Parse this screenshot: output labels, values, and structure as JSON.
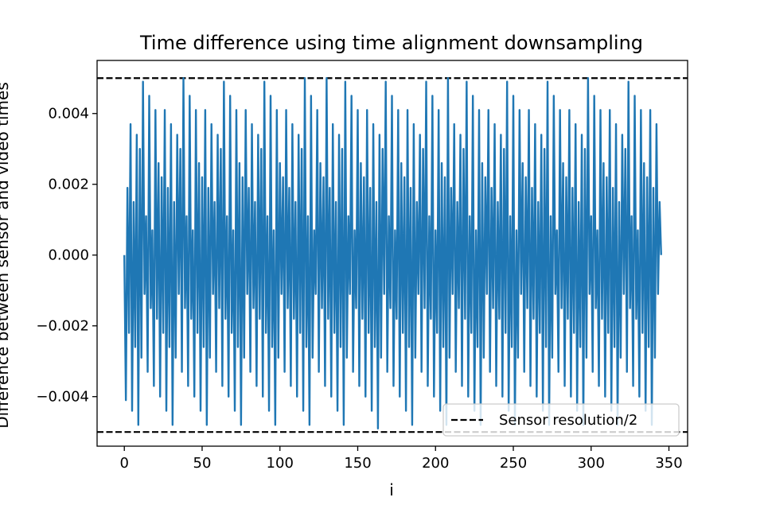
{
  "chart_data": {
    "type": "line",
    "title": "Time difference using time alignment downsampling",
    "xlabel": "i",
    "ylabel": "Difference between sensor and video times",
    "xlim": [
      -17.5,
      362
    ],
    "ylim": [
      -0.0054,
      0.0055
    ],
    "xticks": [
      0,
      50,
      100,
      150,
      200,
      250,
      300,
      350
    ],
    "xtick_labels": [
      "0",
      "50",
      "100",
      "150",
      "200",
      "250",
      "300",
      "350"
    ],
    "yticks": [
      -0.004,
      -0.002,
      0.0,
      0.002,
      0.004
    ],
    "ytick_labels": [
      "−0.004",
      "−0.002",
      "0.000",
      "0.002",
      "0.004"
    ],
    "grid": false,
    "legend_position": "lower right",
    "series": [
      {
        "color": "#1f77b4",
        "style": "solid",
        "x": [
          0,
          1,
          2,
          3,
          4,
          5,
          6,
          7,
          8,
          9,
          10,
          11,
          12,
          13,
          14,
          15,
          16,
          17,
          18,
          19,
          20,
          21,
          22,
          23,
          24,
          25,
          26,
          27,
          28,
          29,
          30,
          31,
          32,
          33,
          34,
          35,
          36,
          37,
          38,
          39,
          40,
          41,
          42,
          43,
          44,
          45,
          46,
          47,
          48,
          49,
          50,
          51,
          52,
          53,
          54,
          55,
          56,
          57,
          58,
          59,
          60,
          61,
          62,
          63,
          64,
          65,
          66,
          67,
          68,
          69,
          70,
          71,
          72,
          73,
          74,
          75,
          76,
          77,
          78,
          79,
          80,
          81,
          82,
          83,
          84,
          85,
          86,
          87,
          88,
          89,
          90,
          91,
          92,
          93,
          94,
          95,
          96,
          97,
          98,
          99,
          100,
          101,
          102,
          103,
          104,
          105,
          106,
          107,
          108,
          109,
          110,
          111,
          112,
          113,
          114,
          115,
          116,
          117,
          118,
          119,
          120,
          121,
          122,
          123,
          124,
          125,
          126,
          127,
          128,
          129,
          130,
          131,
          132,
          133,
          134,
          135,
          136,
          137,
          138,
          139,
          140,
          141,
          142,
          143,
          144,
          145,
          146,
          147,
          148,
          149,
          150,
          151,
          152,
          153,
          154,
          155,
          156,
          157,
          158,
          159,
          160,
          161,
          162,
          163,
          164,
          165,
          166,
          167,
          168,
          169,
          170,
          171,
          172,
          173,
          174,
          175,
          176,
          177,
          178,
          179,
          180,
          181,
          182,
          183,
          184,
          185,
          186,
          187,
          188,
          189,
          190,
          191,
          192,
          193,
          194,
          195,
          196,
          197,
          198,
          199,
          200,
          201,
          202,
          203,
          204,
          205,
          206,
          207,
          208,
          209,
          210,
          211,
          212,
          213,
          214,
          215,
          216,
          217,
          218,
          219,
          220,
          221,
          222,
          223,
          224,
          225,
          226,
          227,
          228,
          229,
          230,
          231,
          232,
          233,
          234,
          235,
          236,
          237,
          238,
          239,
          240,
          241,
          242,
          243,
          244,
          245,
          246,
          247,
          248,
          249,
          250,
          251,
          252,
          253,
          254,
          255,
          256,
          257,
          258,
          259,
          260,
          261,
          262,
          263,
          264,
          265,
          266,
          267,
          268,
          269,
          270,
          271,
          272,
          273,
          274,
          275,
          276,
          277,
          278,
          279,
          280,
          281,
          282,
          283,
          284,
          285,
          286,
          287,
          288,
          289,
          290,
          291,
          292,
          293,
          294,
          295,
          296,
          297,
          298,
          299,
          300,
          301,
          302,
          303,
          304,
          305,
          306,
          307,
          308,
          309,
          310,
          311,
          312,
          313,
          314,
          315,
          316,
          317,
          318,
          319,
          320,
          321,
          322,
          323,
          324,
          325,
          326,
          327,
          328,
          329,
          330,
          331,
          332,
          333,
          334,
          335,
          336,
          337,
          338,
          339,
          340,
          341,
          342,
          343,
          344,
          345
        ],
        "y": [
          0.0,
          -0.0041,
          0.0019,
          -0.0022,
          0.0037,
          -0.0044,
          0.0015,
          -0.0026,
          0.0034,
          -0.0048,
          0.003,
          -0.0029,
          0.0049,
          -0.0011,
          0.0011,
          -0.0033,
          0.0045,
          -0.0015,
          0.0007,
          -0.0037,
          0.0041,
          -0.0018,
          0.0026,
          -0.004,
          0.0022,
          -0.0022,
          0.0041,
          -0.0044,
          0.0019,
          -0.0026,
          0.0037,
          -0.0048,
          0.0015,
          -0.0029,
          0.0034,
          -0.0011,
          0.003,
          -0.0033,
          0.005,
          -0.0015,
          0.0011,
          -0.0037,
          0.0045,
          -0.0018,
          0.0007,
          -0.004,
          0.0041,
          -0.0022,
          0.0026,
          -0.0044,
          0.0022,
          -0.0026,
          0.0041,
          -0.0048,
          0.0019,
          -0.0029,
          0.0037,
          -0.0011,
          0.0015,
          -0.0033,
          0.0034,
          -0.0015,
          0.003,
          -0.0037,
          0.0049,
          -0.0018,
          0.0011,
          -0.004,
          0.0045,
          -0.0022,
          0.0007,
          -0.0044,
          0.0041,
          -0.0026,
          0.0026,
          -0.0048,
          0.0022,
          -0.0029,
          0.0041,
          -0.0011,
          0.0019,
          -0.0033,
          0.0037,
          -0.0015,
          0.0015,
          -0.0037,
          0.0034,
          -0.0018,
          0.003,
          -0.004,
          0.0049,
          -0.0022,
          0.0011,
          -0.0044,
          0.0045,
          -0.0026,
          0.0007,
          -0.0048,
          0.0041,
          -0.0029,
          0.0026,
          -0.0011,
          0.0022,
          -0.0033,
          0.0041,
          -0.0015,
          0.0019,
          -0.0037,
          0.0037,
          -0.0018,
          0.0015,
          -0.004,
          0.0034,
          -0.0022,
          0.003,
          -0.0044,
          0.005,
          -0.0026,
          0.0011,
          -0.0048,
          0.0045,
          -0.0029,
          0.0007,
          -0.0011,
          0.0041,
          -0.0033,
          0.0026,
          -0.0015,
          0.0022,
          -0.0037,
          0.005,
          -0.0018,
          0.0019,
          -0.004,
          0.0037,
          -0.0022,
          0.0015,
          -0.0044,
          0.0034,
          -0.0026,
          0.003,
          -0.0048,
          0.0049,
          -0.0029,
          0.0011,
          -0.0011,
          0.0045,
          -0.0033,
          0.0007,
          -0.0015,
          0.0041,
          -0.0037,
          0.0026,
          -0.0018,
          0.0022,
          -0.004,
          0.0041,
          -0.0022,
          0.0019,
          -0.0044,
          0.0037,
          -0.0026,
          0.0015,
          -0.0049,
          0.0034,
          -0.0029,
          0.003,
          -0.0011,
          0.0049,
          -0.0033,
          0.0011,
          -0.0015,
          0.0045,
          -0.0037,
          0.0007,
          -0.0018,
          0.0041,
          -0.004,
          0.0026,
          -0.0022,
          0.0022,
          -0.0044,
          0.0041,
          -0.0026,
          0.0019,
          -0.0048,
          0.0037,
          -0.0029,
          0.0015,
          -0.0011,
          0.0034,
          -0.0033,
          0.003,
          -0.0015,
          0.0049,
          -0.0037,
          0.0011,
          -0.0018,
          0.0045,
          -0.004,
          0.0007,
          -0.0022,
          0.0041,
          -0.0044,
          0.0026,
          -0.0026,
          0.0022,
          -0.0048,
          0.005,
          -0.0029,
          0.0019,
          -0.0011,
          0.0037,
          -0.0033,
          0.0015,
          -0.0015,
          0.0034,
          -0.0037,
          0.003,
          -0.0018,
          0.0049,
          -0.004,
          0.0011,
          -0.0022,
          0.0045,
          -0.0044,
          0.0007,
          -0.0026,
          0.0041,
          -0.0048,
          0.0026,
          -0.0029,
          0.0022,
          -0.0011,
          0.0041,
          -0.0033,
          0.0019,
          -0.0015,
          0.0037,
          -0.0037,
          0.0015,
          -0.0018,
          0.0034,
          -0.004,
          0.003,
          -0.0022,
          0.0049,
          -0.0044,
          0.0011,
          -0.0026,
          0.0045,
          -0.0048,
          0.0007,
          -0.0029,
          0.0041,
          -0.0011,
          0.0026,
          -0.0033,
          0.0022,
          -0.0015,
          0.0041,
          -0.0037,
          0.0019,
          -0.0018,
          0.0037,
          -0.004,
          0.0015,
          -0.0022,
          0.0034,
          -0.0044,
          0.003,
          -0.0026,
          0.0049,
          -0.0048,
          0.0011,
          -0.0029,
          0.0045,
          -0.0011,
          0.0007,
          -0.0033,
          0.0041,
          -0.0015,
          0.0026,
          -0.0037,
          0.0022,
          -0.0018,
          0.0041,
          -0.004,
          0.0019,
          -0.0022,
          0.0037,
          -0.0044,
          0.0015,
          -0.0026,
          0.0034,
          -0.0048,
          0.003,
          -0.0029,
          0.005,
          -0.0011,
          0.0011,
          -0.0033,
          0.0045,
          -0.0015,
          0.0007,
          -0.0037,
          0.0041,
          -0.0018,
          0.0026,
          -0.004,
          0.0022,
          -0.0022,
          0.0041,
          -0.0044,
          0.0019,
          -0.0026,
          0.0037,
          -0.0048,
          0.0015,
          -0.0029,
          0.0034,
          -0.0011,
          0.003,
          -0.0033,
          0.0049,
          -0.0015,
          0.0011,
          -0.0037,
          0.0045,
          -0.0018,
          0.0007,
          -0.004,
          0.0041,
          -0.0022,
          0.0026,
          -0.0044,
          0.0022,
          -0.0026,
          0.0041,
          -0.0048,
          0.0019,
          -0.0029,
          0.0037,
          -0.0011,
          0.0015,
          0.0
        ]
      }
    ],
    "reference_lines": [
      {
        "y": 0.005,
        "color": "#000000",
        "style": "dashed",
        "name": "Sensor resolution/2"
      },
      {
        "y": -0.005,
        "color": "#000000",
        "style": "dashed"
      }
    ],
    "legend": [
      {
        "label": "Sensor resolution/2",
        "color": "#000000",
        "style": "dashed"
      }
    ]
  }
}
